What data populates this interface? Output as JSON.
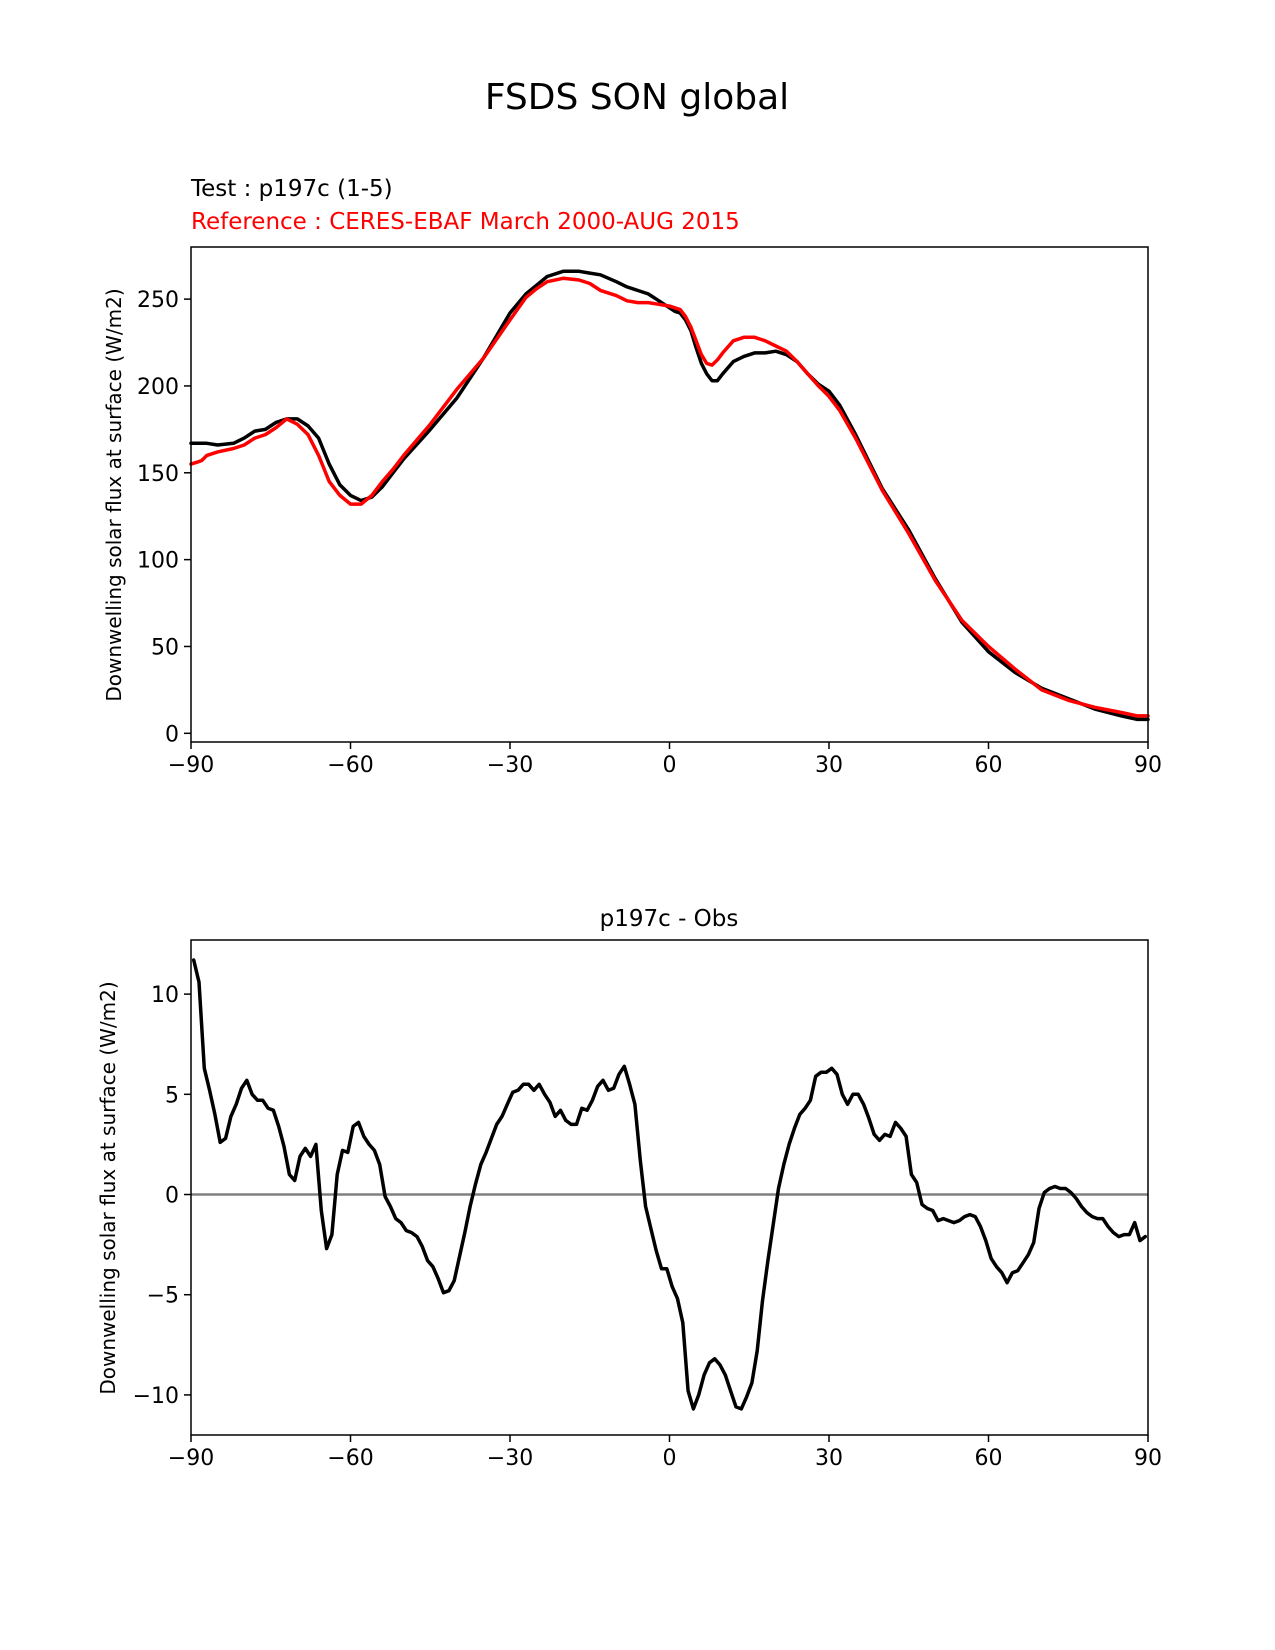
{
  "figure": {
    "suptitle": "FSDS SON global"
  },
  "chart_data": [
    {
      "type": "line",
      "title_test": "Test : p197c (1-5)",
      "title_reference": "Reference : CERES-EBAF March 2000-AUG 2015",
      "title_reference_color": "#ff0000",
      "xlabel": "",
      "ylabel": "Downwelling solar flux at surface (W/m2)",
      "xlim": [
        -90,
        90
      ],
      "ylim": [
        -5,
        280
      ],
      "xticks": [
        -90,
        -60,
        -30,
        0,
        30,
        60,
        90
      ],
      "xtick_labels": [
        "−90",
        "−60",
        "−30",
        "0",
        "30",
        "60",
        "90"
      ],
      "yticks": [
        0,
        50,
        100,
        150,
        200,
        250
      ],
      "ytick_labels": [
        "0",
        "50",
        "100",
        "150",
        "200",
        "250"
      ],
      "grid": false,
      "series": [
        {
          "color": "#000000",
          "x": [
            -90,
            -87,
            -85,
            -82,
            -80,
            -78,
            -76,
            -74,
            -72,
            -70,
            -68,
            -66,
            -64,
            -62,
            -60,
            -58,
            -56,
            -54,
            -52,
            -50,
            -45,
            -40,
            -35,
            -30,
            -27,
            -25,
            -23,
            -20,
            -17,
            -15,
            -13,
            -10,
            -8,
            -6,
            -4,
            -2,
            0,
            1,
            2,
            3,
            4,
            5,
            6,
            7,
            8,
            9,
            10,
            12,
            14,
            16,
            18,
            20,
            22,
            24,
            26,
            28,
            30,
            32,
            35,
            40,
            45,
            50,
            55,
            60,
            65,
            70,
            75,
            80,
            85,
            88,
            90
          ],
          "y": [
            167,
            167,
            166,
            167,
            170,
            174,
            175,
            179,
            181,
            181,
            177,
            170,
            155,
            143,
            137,
            134,
            136,
            142,
            150,
            158,
            175,
            193,
            216,
            242,
            253,
            258,
            263,
            266,
            266,
            265,
            264,
            260,
            257,
            255,
            253,
            249,
            245,
            243,
            242,
            238,
            232,
            222,
            213,
            207,
            203,
            203,
            207,
            214,
            217,
            219,
            219,
            220,
            218,
            214,
            207,
            201,
            197,
            189,
            172,
            141,
            117,
            89,
            64,
            47,
            35,
            26,
            20,
            14,
            10,
            8,
            8
          ]
        },
        {
          "color": "#ff0000",
          "x": [
            -90,
            -89,
            -88,
            -87,
            -85,
            -82,
            -80,
            -78,
            -76,
            -74,
            -72,
            -70,
            -68,
            -66,
            -64,
            -62,
            -60,
            -58,
            -56,
            -54,
            -52,
            -50,
            -45,
            -40,
            -35,
            -30,
            -27,
            -25,
            -23,
            -20,
            -17,
            -15,
            -13,
            -10,
            -8,
            -6,
            -4,
            -2,
            0,
            1,
            2,
            3,
            4,
            5,
            6,
            7,
            8,
            9,
            10,
            12,
            14,
            16,
            18,
            20,
            22,
            24,
            26,
            28,
            30,
            32,
            35,
            40,
            45,
            50,
            55,
            60,
            65,
            70,
            75,
            80,
            85,
            88,
            90
          ],
          "y": [
            155,
            156,
            157,
            160,
            162,
            164,
            166,
            170,
            172,
            176,
            181,
            178,
            172,
            160,
            145,
            137,
            132,
            132,
            137,
            145,
            152,
            160,
            178,
            198,
            216,
            238,
            251,
            256,
            260,
            262,
            261,
            259,
            255,
            252,
            249,
            248,
            248,
            247,
            246,
            245,
            244,
            240,
            234,
            226,
            218,
            213,
            212,
            215,
            219,
            226,
            228,
            228,
            226,
            223,
            220,
            214,
            207,
            200,
            194,
            186,
            170,
            140,
            115,
            88,
            65,
            50,
            37,
            25,
            19,
            15,
            12,
            10,
            10
          ]
        }
      ]
    },
    {
      "type": "line",
      "title": "p197c - Obs",
      "xlabel": "",
      "ylabel": "Downwelling solar flux at surface (W/m2)",
      "xlim": [
        -90,
        90
      ],
      "ylim": [
        -12,
        12.7
      ],
      "xticks": [
        -90,
        -60,
        -30,
        0,
        30,
        60,
        90
      ],
      "xtick_labels": [
        "−90",
        "−60",
        "−30",
        "0",
        "30",
        "60",
        "90"
      ],
      "yticks": [
        -10,
        -5,
        0,
        5,
        10
      ],
      "ytick_labels": [
        "−10",
        "−5",
        "0",
        "5",
        "10"
      ],
      "grid": false,
      "zero_line_color": "#808080",
      "series": [
        {
          "color": "#000000",
          "x": [
            -89.5,
            -88.5,
            -87.5,
            -86.5,
            -85.5,
            -84.5,
            -83.5,
            -82.5,
            -81.5,
            -80.5,
            -79.5,
            -78.5,
            -77.5,
            -76.5,
            -75.5,
            -74.5,
            -73.5,
            -72.5,
            -71.5,
            -70.5,
            -69.5,
            -68.5,
            -67.5,
            -66.5,
            -65.5,
            -64.5,
            -63.5,
            -62.5,
            -61.5,
            -60.5,
            -59.5,
            -58.5,
            -57.5,
            -56.5,
            -55.5,
            -54.5,
            -53.5,
            -52.5,
            -51.5,
            -50.5,
            -49.5,
            -48.5,
            -47.5,
            -46.5,
            -45.5,
            -44.5,
            -43.5,
            -42.5,
            -41.5,
            -40.5,
            -39.5,
            -38.5,
            -37.5,
            -36.5,
            -35.5,
            -34.5,
            -33.5,
            -32.5,
            -31.5,
            -30.5,
            -29.5,
            -28.5,
            -27.5,
            -26.5,
            -25.5,
            -24.5,
            -23.5,
            -22.5,
            -21.5,
            -20.5,
            -19.5,
            -18.5,
            -17.5,
            -16.5,
            -15.5,
            -14.5,
            -13.5,
            -12.5,
            -11.5,
            -10.5,
            -9.5,
            -8.5,
            -7.5,
            -6.5,
            -5.5,
            -4.5,
            -3.5,
            -2.5,
            -1.5,
            -0.5,
            0.5,
            1.5,
            2.5,
            3.5,
            4.5,
            5.5,
            6.5,
            7.5,
            8.5,
            9.5,
            10.5,
            11.5,
            12.5,
            13.5,
            14.5,
            15.5,
            16.5,
            17.5,
            18.5,
            19.5,
            20.5,
            21.5,
            22.5,
            23.5,
            24.5,
            25.5,
            26.5,
            27.5,
            28.5,
            29.5,
            30.5,
            31.5,
            32.5,
            33.5,
            34.5,
            35.5,
            36.5,
            37.5,
            38.5,
            39.5,
            40.5,
            41.5,
            42.5,
            43.5,
            44.5,
            45.5,
            46.5,
            47.5,
            48.5,
            49.5,
            50.5,
            51.5,
            52.5,
            53.5,
            54.5,
            55.5,
            56.5,
            57.5,
            58.5,
            59.5,
            60.5,
            61.5,
            62.5,
            63.5,
            64.5,
            65.5,
            66.5,
            67.5,
            68.5,
            69.5,
            70.5,
            71.5,
            72.5,
            73.5,
            74.5,
            75.5,
            76.5,
            77.5,
            78.5,
            79.5,
            80.5,
            81.5,
            82.5,
            83.5,
            84.5,
            85.5,
            86.5,
            87.5,
            88.5,
            89.5
          ],
          "y": [
            11.7,
            10.6,
            6.3,
            5.2,
            4.0,
            2.6,
            2.8,
            3.9,
            4.5,
            5.3,
            5.7,
            5.0,
            4.7,
            4.7,
            4.3,
            4.2,
            3.4,
            2.4,
            1.0,
            0.7,
            1.9,
            2.3,
            1.9,
            2.5,
            -0.8,
            -2.7,
            -2.0,
            1.0,
            2.2,
            2.1,
            3.4,
            3.6,
            2.9,
            2.5,
            2.2,
            1.5,
            -0.1,
            -0.6,
            -1.2,
            -1.4,
            -1.8,
            -1.9,
            -2.1,
            -2.6,
            -3.3,
            -3.6,
            -4.2,
            -4.9,
            -4.8,
            -4.3,
            -3.1,
            -1.9,
            -0.6,
            0.5,
            1.5,
            2.1,
            2.8,
            3.5,
            3.9,
            4.5,
            5.1,
            5.2,
            5.5,
            5.5,
            5.2,
            5.5,
            5.0,
            4.6,
            3.9,
            4.2,
            3.7,
            3.5,
            3.5,
            4.3,
            4.2,
            4.7,
            5.4,
            5.7,
            5.2,
            5.3,
            6.0,
            6.4,
            5.5,
            4.5,
            1.7,
            -0.6,
            -1.7,
            -2.8,
            -3.7,
            -3.7,
            -4.6,
            -5.2,
            -6.4,
            -9.8,
            -10.7,
            -10.0,
            -9.0,
            -8.4,
            -8.2,
            -8.5,
            -9.0,
            -9.8,
            -10.6,
            -10.7,
            -10.1,
            -9.4,
            -7.8,
            -5.3,
            -3.3,
            -1.5,
            0.3,
            1.5,
            2.5,
            3.3,
            4.0,
            4.3,
            4.7,
            5.9,
            6.1,
            6.1,
            6.3,
            6.0,
            5.0,
            4.5,
            5.0,
            5.0,
            4.5,
            3.8,
            3.0,
            2.7,
            3.0,
            2.9,
            3.6,
            3.3,
            2.9,
            1.0,
            0.6,
            -0.5,
            -0.7,
            -0.8,
            -1.3,
            -1.2,
            -1.3,
            -1.4,
            -1.3,
            -1.1,
            -1.0,
            -1.1,
            -1.6,
            -2.3,
            -3.2,
            -3.6,
            -3.9,
            -4.4,
            -3.9,
            -3.8,
            -3.4,
            -3.0,
            -2.4,
            -0.7,
            0.1,
            0.3,
            0.4,
            0.3,
            0.3,
            0.1,
            -0.2,
            -0.6,
            -0.9,
            -1.1,
            -1.2,
            -1.2,
            -1.6,
            -1.9,
            -2.1,
            -2.0,
            -2.0,
            -1.4,
            -2.3,
            -2.1
          ]
        }
      ]
    }
  ]
}
